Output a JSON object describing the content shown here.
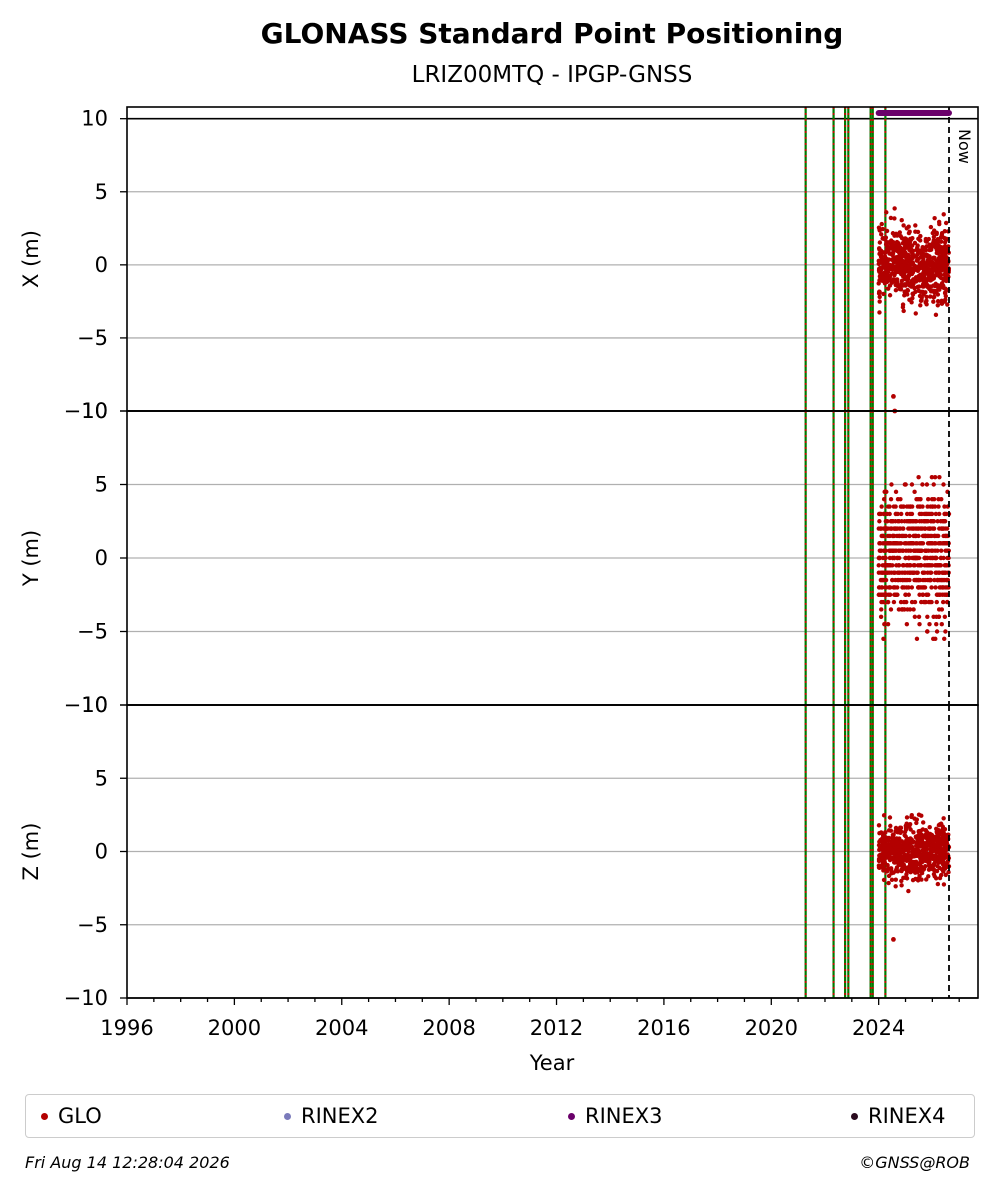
{
  "chart_data": {
    "type": "scatter",
    "title": "GLONASS Standard Point Positioning",
    "subtitle": "LRIZ00MTQ - IPGP-GNSS",
    "xlabel": "Year",
    "xlim": [
      1996,
      2027.7
    ],
    "x_ticks": [
      "1996",
      "2000",
      "2004",
      "2008",
      "2012",
      "2016",
      "2020",
      "2024"
    ],
    "y_ticks": [
      "−10",
      "−5",
      "0",
      "5",
      "10"
    ],
    "now_label": "Now",
    "now": 2026.62,
    "grid": true,
    "colors": {
      "glo": "#b30000",
      "rinex2": "#7b7bbb",
      "rinex3": "#6a006a",
      "rinex4": "#2a0a1e",
      "event_green": "#007a00",
      "event_red": "#d00000"
    },
    "event_lines": [
      2021.28,
      2022.32,
      2022.75,
      2022.87,
      2023.7,
      2023.78,
      2024.25
    ],
    "rinex3_coverage": [
      2024.0,
      2026.62
    ],
    "panels": [
      {
        "ylabel": "X (m)",
        "ylim": [
          -10,
          10.8
        ],
        "data_range": [
          2024.0,
          2026.62
        ],
        "spread": 1.2,
        "extreme_min": -3.5,
        "extreme_max": 4.0,
        "outliers": [
          {
            "x": 2024.55,
            "y": -9.0
          },
          {
            "x": 2024.6,
            "y": -10.0
          }
        ]
      },
      {
        "ylabel": "Y (m)",
        "ylim": [
          -10,
          10
        ],
        "data_range": [
          2024.0,
          2026.62
        ],
        "spread": 2.2,
        "extreme_min": -5.5,
        "extreme_max": 5.5,
        "outliers": []
      },
      {
        "ylabel": "Z (m)",
        "ylim": [
          -10,
          10
        ],
        "data_range": [
          2024.0,
          2026.62
        ],
        "spread": 0.9,
        "extreme_min": -2.8,
        "extreme_max": 2.8,
        "outliers": [
          {
            "x": 2024.55,
            "y": -6.0
          }
        ]
      }
    ],
    "legend": [
      "GLO",
      "RINEX2",
      "RINEX3",
      "RINEX4"
    ],
    "legend_position": "bottom"
  },
  "footer": {
    "timestamp": "Fri Aug 14 12:28:04 2026",
    "credit": "©GNSS@ROB"
  }
}
